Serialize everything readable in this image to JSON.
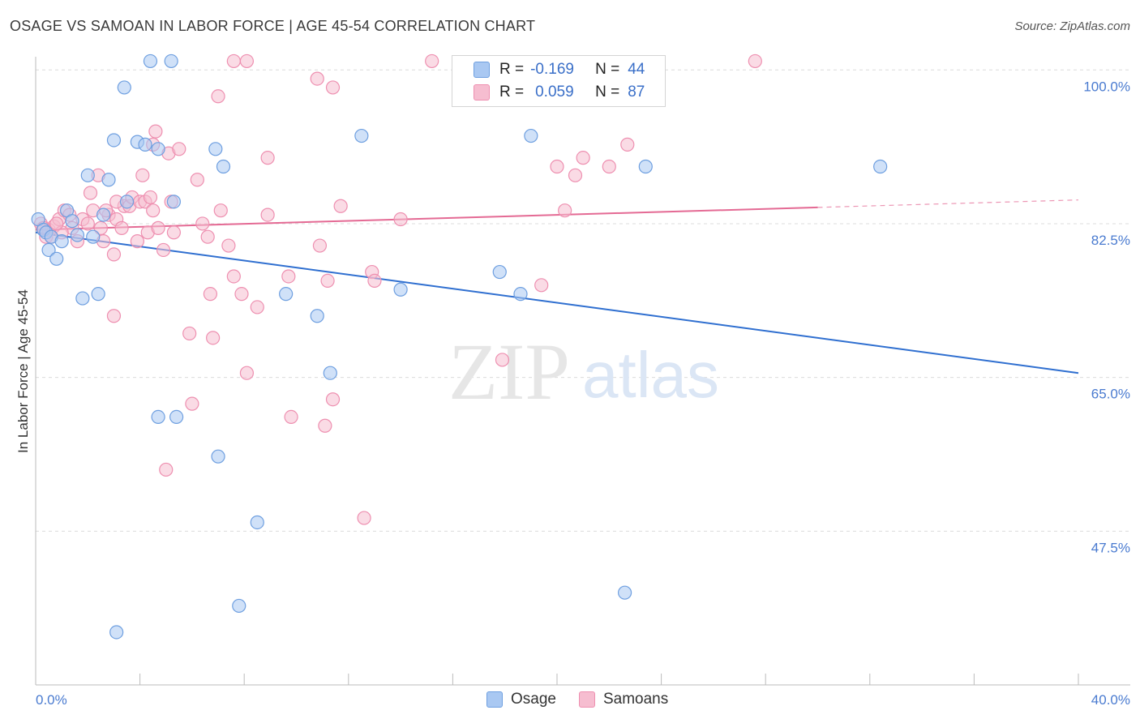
{
  "title": "OSAGE VS SAMOAN IN LABOR FORCE | AGE 45-54 CORRELATION CHART",
  "source": "Source: ZipAtlas.com",
  "watermark": {
    "zip": "ZIP",
    "atlas": "atlas"
  },
  "colors": {
    "osage_fill": "#a9c8f2",
    "osage_stroke": "#6e9fe0",
    "osage_line": "#2f6fd0",
    "samoan_fill": "#f6bdd0",
    "samoan_stroke": "#ee8fb0",
    "samoan_line": "#e46a94",
    "tick_text": "#4a7bd0",
    "grid": "#dcdcdc"
  },
  "legend": {
    "osage": {
      "r_label": "R =",
      "r_value": "-0.169",
      "n_label": "N =",
      "n_value": "44"
    },
    "samoan": {
      "r_label": "R =",
      "r_value": "0.059",
      "n_label": "N =",
      "n_value": "87"
    }
  },
  "bottom_legend": [
    "Osage",
    "Samoans"
  ],
  "chart_data": {
    "type": "scatter",
    "title": "OSAGE VS SAMOAN IN LABOR FORCE | AGE 45-54 CORRELATION CHART",
    "xlabel": "",
    "ylabel": "In Labor Force | Age 45-54",
    "xlim": [
      0,
      40
    ],
    "ylim": [
      30,
      101.5
    ],
    "x_tick_labels": [
      "0.0%",
      "40.0%"
    ],
    "y_ticks": [
      {
        "value": 100.0,
        "label": "100.0%"
      },
      {
        "value": 82.5,
        "label": "82.5%"
      },
      {
        "value": 65.0,
        "label": "65.0%"
      },
      {
        "value": 47.5,
        "label": "47.5%"
      }
    ],
    "series": [
      {
        "name": "Osage",
        "trend": {
          "x": [
            0,
            40
          ],
          "y": [
            81.5,
            65.5
          ],
          "solid_until": 40
        },
        "points": [
          [
            0.1,
            83.0
          ],
          [
            0.3,
            81.8
          ],
          [
            0.4,
            81.5
          ],
          [
            0.5,
            79.5
          ],
          [
            0.6,
            81.0
          ],
          [
            0.8,
            78.5
          ],
          [
            1.0,
            80.5
          ],
          [
            1.2,
            84.0
          ],
          [
            1.4,
            82.8
          ],
          [
            1.6,
            81.2
          ],
          [
            1.8,
            74.0
          ],
          [
            2.0,
            88.0
          ],
          [
            2.2,
            81.0
          ],
          [
            2.4,
            74.5
          ],
          [
            2.6,
            83.5
          ],
          [
            2.8,
            87.5
          ],
          [
            3.0,
            92.0
          ],
          [
            3.4,
            98.0
          ],
          [
            3.5,
            85.0
          ],
          [
            3.9,
            91.8
          ],
          [
            4.2,
            91.5
          ],
          [
            4.4,
            101.0
          ],
          [
            4.7,
            91.0
          ],
          [
            4.7,
            60.5
          ],
          [
            5.2,
            101.0
          ],
          [
            5.3,
            85.0
          ],
          [
            5.4,
            60.5
          ],
          [
            6.9,
            91.0
          ],
          [
            7.0,
            56.0
          ],
          [
            7.2,
            89.0
          ],
          [
            7.8,
            39.0
          ],
          [
            8.5,
            48.5
          ],
          [
            9.6,
            74.5
          ],
          [
            10.8,
            72.0
          ],
          [
            11.3,
            65.5
          ],
          [
            12.5,
            92.5
          ],
          [
            14.0,
            75.0
          ],
          [
            17.8,
            77.0
          ],
          [
            18.6,
            74.5
          ],
          [
            19.0,
            92.5
          ],
          [
            22.6,
            40.5
          ],
          [
            23.4,
            89.0
          ],
          [
            32.4,
            89.0
          ],
          [
            3.1,
            36.0
          ]
        ]
      },
      {
        "name": "Samoans",
        "trend": {
          "x": [
            0,
            40
          ],
          "y": [
            81.8,
            85.2
          ],
          "solid_until": 30
        },
        "points": [
          [
            0.2,
            82.5
          ],
          [
            0.4,
            81.0
          ],
          [
            0.5,
            81.8
          ],
          [
            0.7,
            82.2
          ],
          [
            0.9,
            83.0
          ],
          [
            1.1,
            84.0
          ],
          [
            1.3,
            83.5
          ],
          [
            1.4,
            82.0
          ],
          [
            1.6,
            80.5
          ],
          [
            1.8,
            83.0
          ],
          [
            2.0,
            82.5
          ],
          [
            2.1,
            86.0
          ],
          [
            2.2,
            84.0
          ],
          [
            2.4,
            88.0
          ],
          [
            2.5,
            82.0
          ],
          [
            2.6,
            80.5
          ],
          [
            2.8,
            83.5
          ],
          [
            3.0,
            79.0
          ],
          [
            3.0,
            72.0
          ],
          [
            3.1,
            83.0
          ],
          [
            3.3,
            82.0
          ],
          [
            3.4,
            84.5
          ],
          [
            3.6,
            84.5
          ],
          [
            3.7,
            85.5
          ],
          [
            3.9,
            80.5
          ],
          [
            4.0,
            85.0
          ],
          [
            4.1,
            88.0
          ],
          [
            4.2,
            85.0
          ],
          [
            4.3,
            81.5
          ],
          [
            4.4,
            85.5
          ],
          [
            4.5,
            91.5
          ],
          [
            4.6,
            93.0
          ],
          [
            4.7,
            82.0
          ],
          [
            4.9,
            79.5
          ],
          [
            5.1,
            90.5
          ],
          [
            5.2,
            85.0
          ],
          [
            5.3,
            81.5
          ],
          [
            5.5,
            91.0
          ],
          [
            5.9,
            70.0
          ],
          [
            6.0,
            62.0
          ],
          [
            6.2,
            87.5
          ],
          [
            6.4,
            82.5
          ],
          [
            6.6,
            81.0
          ],
          [
            6.7,
            74.5
          ],
          [
            6.8,
            69.5
          ],
          [
            7.0,
            97.0
          ],
          [
            7.1,
            84.0
          ],
          [
            7.4,
            80.0
          ],
          [
            7.6,
            76.5
          ],
          [
            7.6,
            101.0
          ],
          [
            7.9,
            74.5
          ],
          [
            8.1,
            101.0
          ],
          [
            8.1,
            65.5
          ],
          [
            8.5,
            73.0
          ],
          [
            8.9,
            90.0
          ],
          [
            8.9,
            83.5
          ],
          [
            9.7,
            76.5
          ],
          [
            9.8,
            60.5
          ],
          [
            10.8,
            99.0
          ],
          [
            10.9,
            80.0
          ],
          [
            11.4,
            98.0
          ],
          [
            11.2,
            76.0
          ],
          [
            11.4,
            62.5
          ],
          [
            11.7,
            84.5
          ],
          [
            12.6,
            49.0
          ],
          [
            12.9,
            77.0
          ],
          [
            13.0,
            76.0
          ],
          [
            14.0,
            83.0
          ],
          [
            15.2,
            101.0
          ],
          [
            17.9,
            67.0
          ],
          [
            19.4,
            75.5
          ],
          [
            20.0,
            89.0
          ],
          [
            20.3,
            84.0
          ],
          [
            20.7,
            88.0
          ],
          [
            21.0,
            90.0
          ],
          [
            22.0,
            89.0
          ],
          [
            22.7,
            91.5
          ],
          [
            27.6,
            101.0
          ],
          [
            3.1,
            85.0
          ],
          [
            2.7,
            84.0
          ],
          [
            1.0,
            81.5
          ],
          [
            0.8,
            82.5
          ],
          [
            0.6,
            81.0
          ],
          [
            5.0,
            54.5
          ],
          [
            11.1,
            59.5
          ],
          [
            4.5,
            84.0
          ],
          [
            0.3,
            82.0
          ]
        ]
      }
    ]
  }
}
